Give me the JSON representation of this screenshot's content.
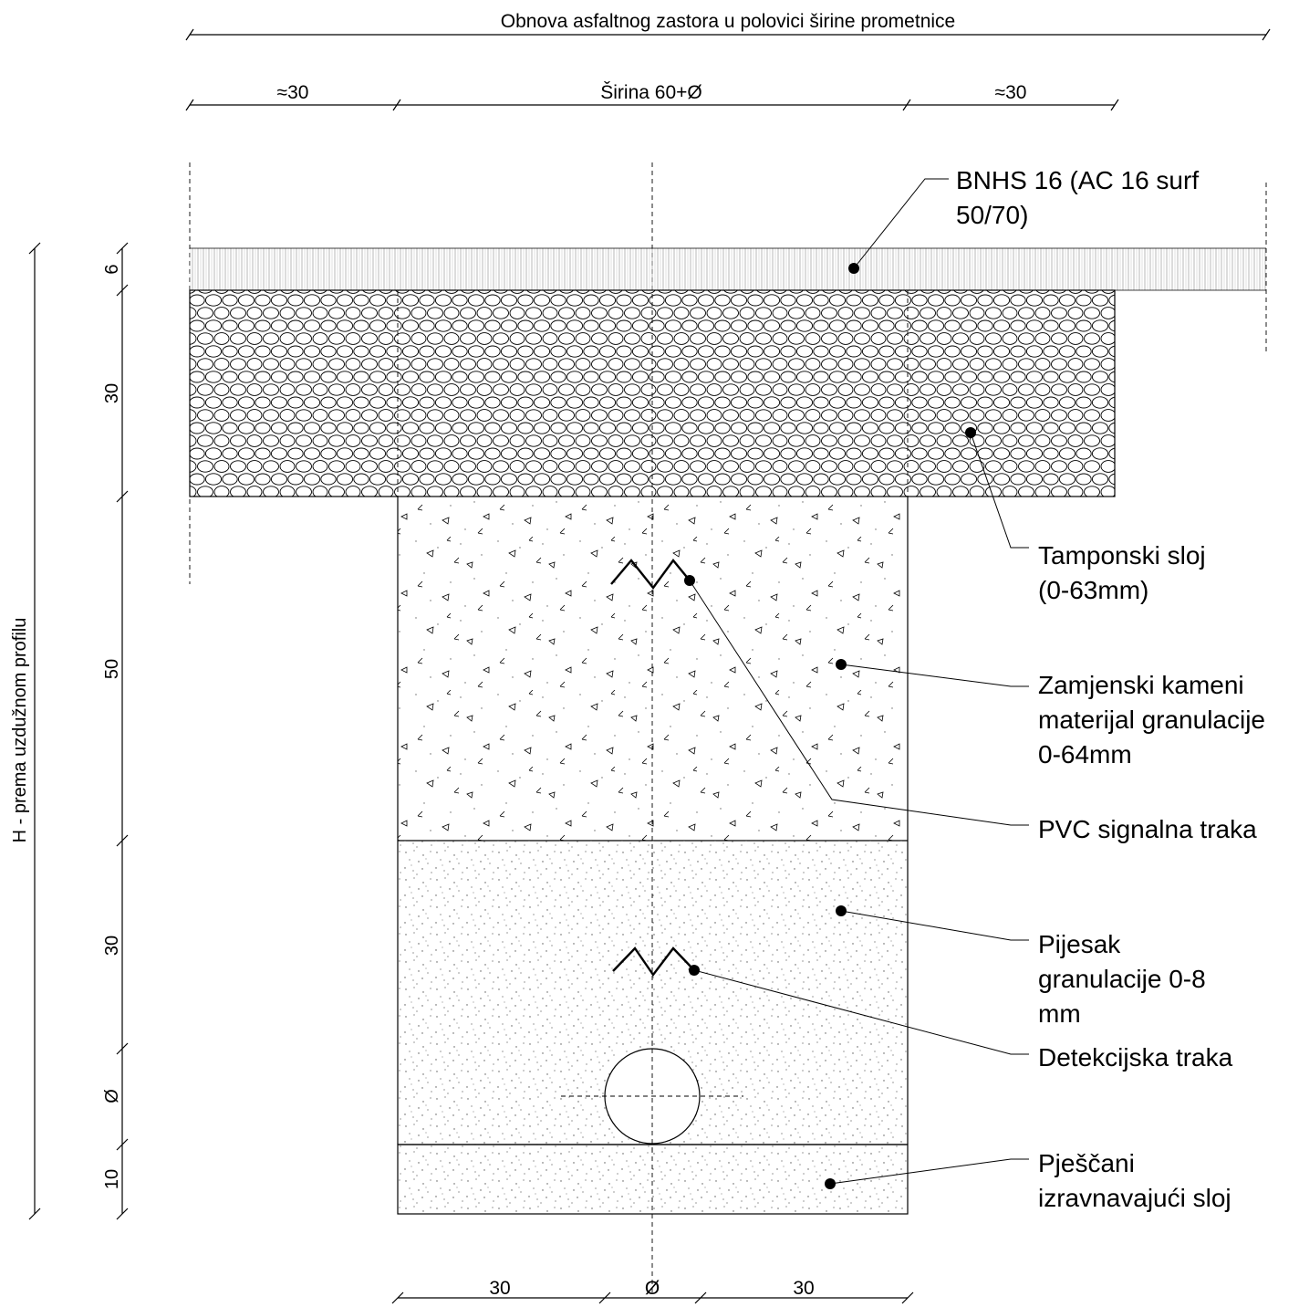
{
  "title": "Obnova asfaltnog zastora u polovici širine prometnice",
  "top_dimensions": {
    "left": "≈30",
    "middle": "Širina 60+Ø",
    "right": "≈30"
  },
  "vertical_axis_label": "H - prema uzdužnom profilu",
  "left_dimensions": [
    "6",
    "30",
    "50",
    "30",
    "Ø",
    "10"
  ],
  "bottom_dimensions": [
    "30",
    "Ø",
    "30"
  ],
  "layers": [
    {
      "id": "asphalt",
      "label_lines": [
        "BNHS 16 (AC 16 surf",
        "50/70)"
      ]
    },
    {
      "id": "tampon",
      "label_lines": [
        "Tamponski sloj",
        "(0-63mm)"
      ]
    },
    {
      "id": "replacement",
      "label_lines": [
        "Zamjenski kameni",
        "materijal granulacije",
        "0-64mm"
      ]
    },
    {
      "id": "pvc_tape",
      "label_lines": [
        "PVC signalna traka"
      ]
    },
    {
      "id": "sand",
      "label_lines": [
        "Pijesak",
        "granulacije 0-8",
        "mm"
      ]
    },
    {
      "id": "detection_tape",
      "label_lines": [
        "Detekcijska traka"
      ]
    },
    {
      "id": "bedding",
      "label_lines": [
        "Pješčani",
        "izravnavajući sloj"
      ]
    }
  ]
}
